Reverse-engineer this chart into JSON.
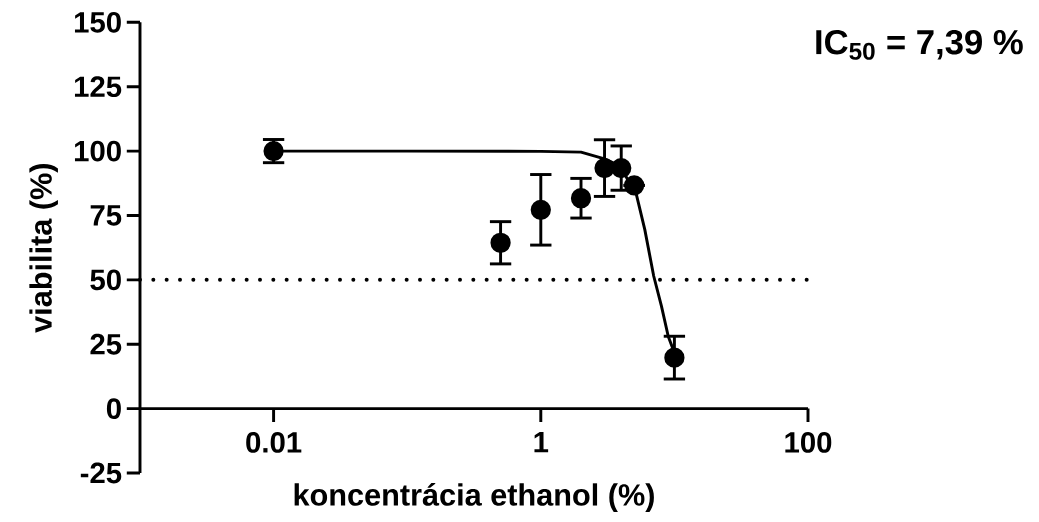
{
  "chart_data": {
    "type": "scatter",
    "xlabel": "koncentrácia ethanol (%)",
    "ylabel": "viabilita (%)",
    "annotations": [
      "IC$_{50}$ = 7,39 %"
    ],
    "log": "x",
    "xlim": [
      0.001,
      100
    ],
    "xticks": [
      0.01,
      1,
      100
    ],
    "ylim": [
      -25,
      150
    ],
    "yticks": [
      -25,
      0,
      25,
      50,
      75,
      100,
      125,
      150
    ],
    "marker": "circle",
    "ref_lines": [
      {
        "axis": "y",
        "value": 50,
        "line_style": "dotted",
        "color": "#000000"
      }
    ],
    "series": [
      {
        "color": "#000000",
        "x": [
          0.01,
          0.5,
          1,
          2,
          3,
          4,
          5,
          10
        ],
        "values": [
          100,
          64.4,
          77.2,
          81.7,
          93.4,
          93.4,
          86.7,
          19.8
        ],
        "errors": [
          4.5,
          8.2,
          13.7,
          7.7,
          11,
          8.6,
          null,
          8.3
        ]
      },
      {
        "type": "line",
        "color": "#000000",
        "marker": "none",
        "x": [
          0.01,
          0.1,
          1,
          2,
          3,
          4,
          4.5,
          5,
          6,
          7,
          8,
          9,
          10
        ],
        "values": [
          100,
          100,
          99.9,
          99.6,
          97,
          94,
          88.5,
          86.7,
          69.6,
          51.5,
          39.8,
          28,
          21.7
        ]
      }
    ]
  }
}
